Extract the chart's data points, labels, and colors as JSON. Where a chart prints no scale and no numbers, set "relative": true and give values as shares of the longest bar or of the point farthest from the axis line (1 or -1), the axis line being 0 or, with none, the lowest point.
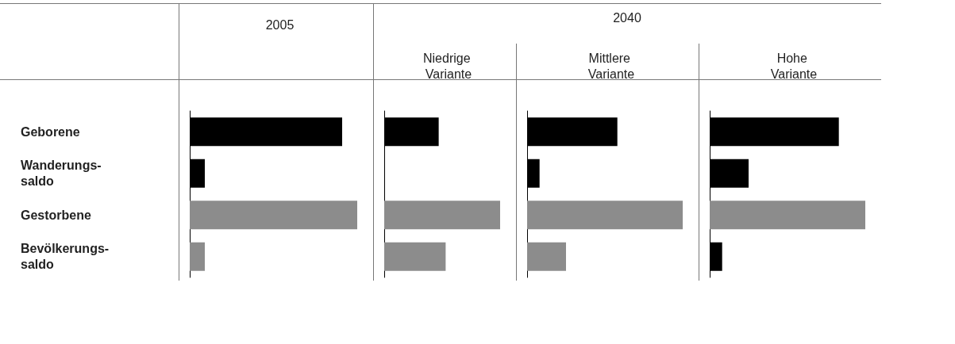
{
  "chart_data": [
    {
      "type": "bar",
      "orientation": "horizontal",
      "relative": true,
      "title": "2005",
      "tick_labels": "y",
      "categories": [
        "Geborene",
        "Wanderungs-saldo",
        "Gestorbene",
        "Bevölkerungs-saldo"
      ],
      "values": [
        0.91,
        0.09,
        1,
        0.09
      ],
      "colors": [
        "#000000",
        "#000000",
        "#8c8c8c",
        "#8c8c8c"
      ]
    },
    {
      "type": "bar",
      "orientation": "horizontal",
      "relative": true,
      "title": "Niedrige Variante",
      "annotations": [
        "2040"
      ],
      "categories": [
        null,
        null,
        null,
        null
      ],
      "values": [
        0.47,
        0,
        1,
        0.53
      ],
      "colors": [
        "#000000",
        "#000000",
        "#8c8c8c",
        "#8c8c8c"
      ]
    },
    {
      "type": "bar",
      "orientation": "horizontal",
      "relative": true,
      "title": "Mittlere Variante",
      "categories": [
        null,
        null,
        null,
        null
      ],
      "values": [
        0.58,
        0.08,
        1,
        0.25
      ],
      "colors": [
        "#000000",
        "#000000",
        "#8c8c8c",
        "#8c8c8c"
      ]
    },
    {
      "type": "bar",
      "orientation": "horizontal",
      "relative": true,
      "title": "Hohe Variante",
      "categories": [
        null,
        null,
        null,
        null
      ],
      "values": [
        0.83,
        0.25,
        1,
        0.08
      ],
      "colors": [
        "#000000",
        "#000000",
        "#8c8c8c",
        "#000000"
      ]
    }
  ]
}
